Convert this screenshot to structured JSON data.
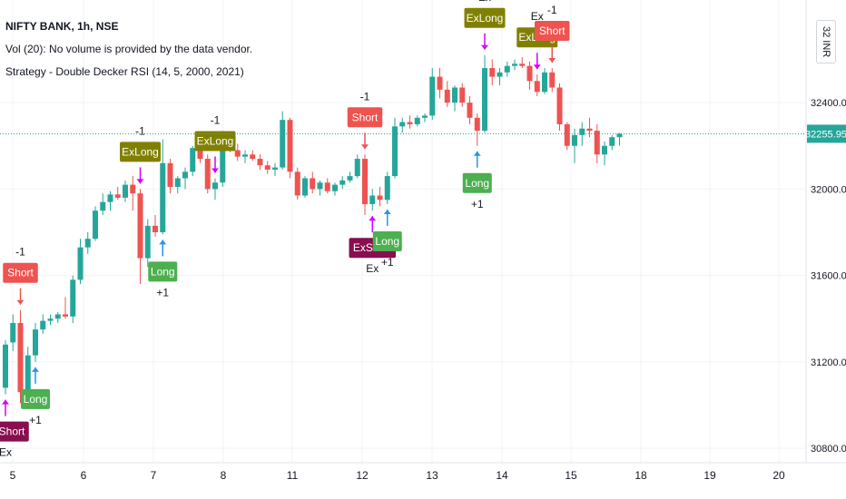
{
  "header": {
    "symbol_line": "NIFTY BANK, 1h, NSE",
    "volume_line": "Vol (20): No volume is provided by the data vendor.",
    "strategy_line": "Strategy - Double Decker RSI (14, 5, 2000, 2021)"
  },
  "axis": {
    "currency_label": "32 INR",
    "price_ticks": [
      "32400.00",
      "32000.00",
      "31600.00",
      "31200.00",
      "30800.00"
    ],
    "last_price_label": "32255.95",
    "date_ticks": [
      "5",
      "6",
      "7",
      "8",
      "11",
      "12",
      "13",
      "14",
      "15",
      "18",
      "19",
      "20"
    ]
  },
  "colors": {
    "up": "#26a69a",
    "down": "#ef5350",
    "long": "#4caf50",
    "short": "#ef5350",
    "exlong": "#808000",
    "exshort": "#880e4f",
    "exit_arrow": "#d500f9",
    "long_arrow": "#2196f3"
  },
  "chart_data": {
    "type": "candlestick",
    "ylim": [
      30750,
      32850
    ],
    "last_price": 32255.95,
    "candles": [
      {
        "o": 31080,
        "h": 31300,
        "l": 31050,
        "c": 31280
      },
      {
        "o": 31290,
        "h": 31420,
        "l": 31250,
        "c": 31380
      },
      {
        "o": 31380,
        "h": 31440,
        "l": 31010,
        "c": 31060
      },
      {
        "o": 31060,
        "h": 31270,
        "l": 31000,
        "c": 31230
      },
      {
        "o": 31230,
        "h": 31380,
        "l": 31200,
        "c": 31350
      },
      {
        "o": 31350,
        "h": 31420,
        "l": 31330,
        "c": 31390
      },
      {
        "o": 31390,
        "h": 31420,
        "l": 31370,
        "c": 31400
      },
      {
        "o": 31400,
        "h": 31430,
        "l": 31380,
        "c": 31420
      },
      {
        "o": 31420,
        "h": 31500,
        "l": 31400,
        "c": 31410
      },
      {
        "o": 31410,
        "h": 31600,
        "l": 31380,
        "c": 31580
      },
      {
        "o": 31580,
        "h": 31770,
        "l": 31560,
        "c": 31730
      },
      {
        "o": 31730,
        "h": 31800,
        "l": 31700,
        "c": 31770
      },
      {
        "o": 31770,
        "h": 31920,
        "l": 31760,
        "c": 31900
      },
      {
        "o": 31900,
        "h": 31980,
        "l": 31880,
        "c": 31940
      },
      {
        "o": 31940,
        "h": 31990,
        "l": 31900,
        "c": 31975
      },
      {
        "o": 31975,
        "h": 32010,
        "l": 31950,
        "c": 31960
      },
      {
        "o": 31960,
        "h": 32040,
        "l": 31940,
        "c": 32020
      },
      {
        "o": 32020,
        "h": 32060,
        "l": 31900,
        "c": 31980
      },
      {
        "o": 31980,
        "h": 32000,
        "l": 31560,
        "c": 31680
      },
      {
        "o": 31680,
        "h": 31860,
        "l": 31640,
        "c": 31830
      },
      {
        "o": 31830,
        "h": 31880,
        "l": 31780,
        "c": 31800
      },
      {
        "o": 31800,
        "h": 32230,
        "l": 31790,
        "c": 32120
      },
      {
        "o": 32120,
        "h": 32140,
        "l": 31980,
        "c": 32010
      },
      {
        "o": 32010,
        "h": 32060,
        "l": 31980,
        "c": 32050
      },
      {
        "o": 32050,
        "h": 32100,
        "l": 32000,
        "c": 32080
      },
      {
        "o": 32080,
        "h": 32200,
        "l": 32060,
        "c": 32190
      },
      {
        "o": 32190,
        "h": 32210,
        "l": 32120,
        "c": 32140
      },
      {
        "o": 32140,
        "h": 32160,
        "l": 31980,
        "c": 32000
      },
      {
        "o": 32000,
        "h": 32050,
        "l": 31950,
        "c": 32030
      },
      {
        "o": 32030,
        "h": 32270,
        "l": 32010,
        "c": 32240
      },
      {
        "o": 32240,
        "h": 32250,
        "l": 32170,
        "c": 32180
      },
      {
        "o": 32180,
        "h": 32210,
        "l": 32130,
        "c": 32150
      },
      {
        "o": 32150,
        "h": 32180,
        "l": 32120,
        "c": 32160
      },
      {
        "o": 32160,
        "h": 32180,
        "l": 32130,
        "c": 32140
      },
      {
        "o": 32140,
        "h": 32160,
        "l": 32090,
        "c": 32110
      },
      {
        "o": 32110,
        "h": 32130,
        "l": 32070,
        "c": 32090
      },
      {
        "o": 32090,
        "h": 32120,
        "l": 32060,
        "c": 32100
      },
      {
        "o": 32100,
        "h": 32360,
        "l": 32090,
        "c": 32320
      },
      {
        "o": 32320,
        "h": 32330,
        "l": 32050,
        "c": 32080
      },
      {
        "o": 32080,
        "h": 32100,
        "l": 31950,
        "c": 31970
      },
      {
        "o": 31970,
        "h": 32060,
        "l": 31960,
        "c": 32050
      },
      {
        "o": 32050,
        "h": 32080,
        "l": 31980,
        "c": 32000
      },
      {
        "o": 32000,
        "h": 32040,
        "l": 31970,
        "c": 32030
      },
      {
        "o": 32030,
        "h": 32050,
        "l": 31980,
        "c": 31990
      },
      {
        "o": 31990,
        "h": 32030,
        "l": 31970,
        "c": 32020
      },
      {
        "o": 32020,
        "h": 32060,
        "l": 32000,
        "c": 32040
      },
      {
        "o": 32040,
        "h": 32080,
        "l": 32030,
        "c": 32060
      },
      {
        "o": 32060,
        "h": 32160,
        "l": 32050,
        "c": 32140
      },
      {
        "o": 32140,
        "h": 32160,
        "l": 31880,
        "c": 31930
      },
      {
        "o": 31930,
        "h": 32000,
        "l": 31900,
        "c": 31970
      },
      {
        "o": 31970,
        "h": 32010,
        "l": 31920,
        "c": 31950
      },
      {
        "o": 31950,
        "h": 32080,
        "l": 31930,
        "c": 32060
      },
      {
        "o": 32060,
        "h": 32330,
        "l": 32050,
        "c": 32290
      },
      {
        "o": 32290,
        "h": 32330,
        "l": 32260,
        "c": 32310
      },
      {
        "o": 32310,
        "h": 32340,
        "l": 32280,
        "c": 32300
      },
      {
        "o": 32300,
        "h": 32340,
        "l": 32290,
        "c": 32330
      },
      {
        "o": 32330,
        "h": 32350,
        "l": 32310,
        "c": 32340
      },
      {
        "o": 32340,
        "h": 32560,
        "l": 32320,
        "c": 32520
      },
      {
        "o": 32520,
        "h": 32560,
        "l": 32420,
        "c": 32460
      },
      {
        "o": 32460,
        "h": 32500,
        "l": 32380,
        "c": 32400
      },
      {
        "o": 32400,
        "h": 32480,
        "l": 32360,
        "c": 32470
      },
      {
        "o": 32470,
        "h": 32490,
        "l": 32380,
        "c": 32400
      },
      {
        "o": 32400,
        "h": 32430,
        "l": 32300,
        "c": 32330
      },
      {
        "o": 32330,
        "h": 32350,
        "l": 32200,
        "c": 32270
      },
      {
        "o": 32270,
        "h": 32620,
        "l": 32260,
        "c": 32560
      },
      {
        "o": 32560,
        "h": 32600,
        "l": 32480,
        "c": 32520
      },
      {
        "o": 32520,
        "h": 32560,
        "l": 32480,
        "c": 32540
      },
      {
        "o": 32540,
        "h": 32590,
        "l": 32520,
        "c": 32570
      },
      {
        "o": 32570,
        "h": 32600,
        "l": 32550,
        "c": 32580
      },
      {
        "o": 32580,
        "h": 32610,
        "l": 32560,
        "c": 32570
      },
      {
        "o": 32570,
        "h": 32590,
        "l": 32460,
        "c": 32500
      },
      {
        "o": 32500,
        "h": 32530,
        "l": 32430,
        "c": 32450
      },
      {
        "o": 32450,
        "h": 32560,
        "l": 32440,
        "c": 32540
      },
      {
        "o": 32540,
        "h": 32560,
        "l": 32450,
        "c": 32470
      },
      {
        "o": 32470,
        "h": 32490,
        "l": 32270,
        "c": 32300
      },
      {
        "o": 32300,
        "h": 32310,
        "l": 32180,
        "c": 32200
      },
      {
        "o": 32200,
        "h": 32280,
        "l": 32120,
        "c": 32250
      },
      {
        "o": 32250,
        "h": 32310,
        "l": 32200,
        "c": 32280
      },
      {
        "o": 32280,
        "h": 32330,
        "l": 32240,
        "c": 32270
      },
      {
        "o": 32270,
        "h": 32300,
        "l": 32120,
        "c": 32160
      },
      {
        "o": 32160,
        "h": 32220,
        "l": 32110,
        "c": 32200
      },
      {
        "o": 32200,
        "h": 32250,
        "l": 32180,
        "c": 32240
      },
      {
        "o": 32240,
        "h": 32260,
        "l": 32200,
        "c": 32256
      }
    ],
    "signals": [
      {
        "i": 0,
        "kind": "exshort",
        "label": "ExShort",
        "note": "Ex"
      },
      {
        "i": 2,
        "kind": "short",
        "label": "Short",
        "note": "-1"
      },
      {
        "i": 4,
        "kind": "long",
        "label": "Long",
        "note": "+1"
      },
      {
        "i": 18,
        "kind": "exlong",
        "label": "ExLong",
        "note": "-1"
      },
      {
        "i": 21,
        "kind": "long",
        "label": "Long",
        "note": "+1"
      },
      {
        "i": 28,
        "kind": "exlong",
        "label": "ExLong",
        "note": "-1"
      },
      {
        "i": 48,
        "kind": "short",
        "label": "Short",
        "note": "-1"
      },
      {
        "i": 49,
        "kind": "exshort",
        "label": "ExShort",
        "note": "Ex"
      },
      {
        "i": 51,
        "kind": "long",
        "label": "Long",
        "note": "+1"
      },
      {
        "i": 64,
        "kind": "exlong",
        "label": "ExLong",
        "note": "Ex"
      },
      {
        "i": 63,
        "kind": "long",
        "label": "Long",
        "note": "+1"
      },
      {
        "i": 71,
        "kind": "exlong",
        "label": "ExLong",
        "note": "Ex"
      },
      {
        "i": 73,
        "kind": "short",
        "label": "Short",
        "note": "-1"
      }
    ]
  }
}
